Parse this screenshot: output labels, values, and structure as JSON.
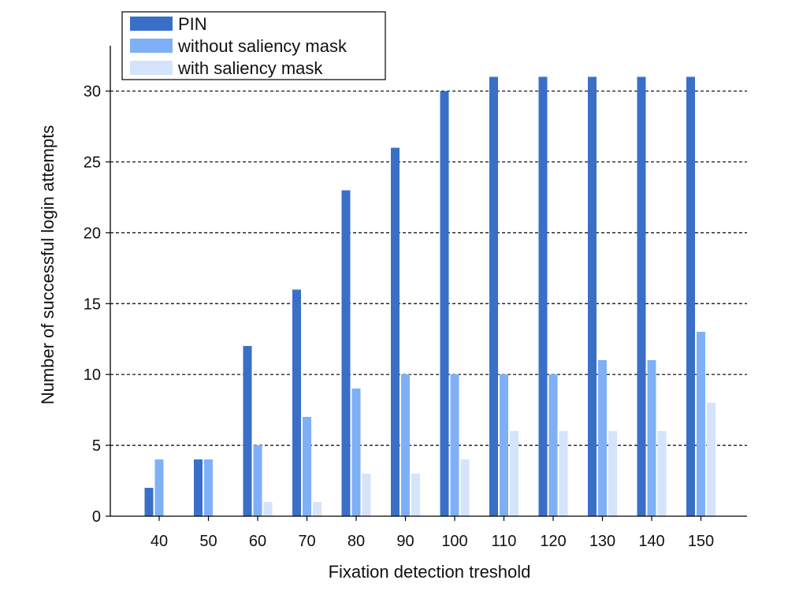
{
  "chart_data": {
    "type": "bar",
    "title": "",
    "xlabel": "Fixation detection treshold",
    "ylabel": "Number of successful login attempts",
    "categories": [
      "40",
      "50",
      "60",
      "70",
      "80",
      "90",
      "100",
      "110",
      "120",
      "130",
      "140",
      "150"
    ],
    "series": [
      {
        "name": "PIN",
        "color": "#3a6fc7",
        "values": [
          2,
          4,
          12,
          16,
          23,
          26,
          30,
          31,
          31,
          31,
          31,
          31
        ]
      },
      {
        "name": "without saliency mask",
        "color": "#7fb0f7",
        "values": [
          4,
          4,
          5,
          7,
          9,
          10,
          10,
          10,
          10,
          11,
          11,
          13
        ]
      },
      {
        "name": "with saliency mask",
        "color": "#d5e3fb",
        "values": [
          0,
          0,
          1,
          1,
          3,
          3,
          4,
          6,
          6,
          6,
          6,
          8
        ]
      }
    ],
    "ylim": [
      0,
      33.2
    ],
    "yticks": [
      0,
      5,
      10,
      15,
      20,
      25,
      30
    ],
    "grid": "horizontal dashed at y ticks",
    "legend_position": "top-left"
  }
}
